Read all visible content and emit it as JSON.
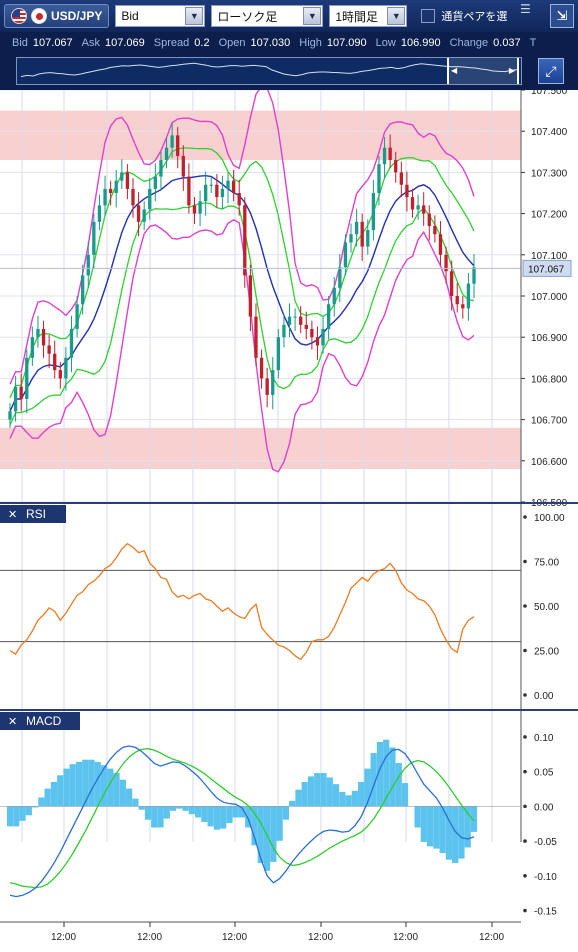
{
  "toolbar": {
    "pair": "USD/JPY",
    "price_type": "Bid",
    "chart_type": "ローソク足",
    "timeframe": "1時間足",
    "compare_label": "通貨ペアを選"
  },
  "quote": {
    "bid_label": "Bid",
    "bid": "107.067",
    "ask_label": "Ask",
    "ask": "107.069",
    "spread_label": "Spread",
    "spread": "0.2",
    "open_label": "Open",
    "open": "107.030",
    "high_label": "High",
    "high": "107.090",
    "low_label": "Low",
    "low": "106.990",
    "change_label": "Change",
    "change": "0.037",
    "trailing": "T"
  },
  "icons": {
    "menu": "menu-lines-icon",
    "shrink": "shrink-arrow-icon",
    "expand": "expand-arrows-icon",
    "close": "close-x-icon"
  },
  "colors": {
    "candle_up": "#1a9a8c",
    "candle_down": "#c0202a",
    "bollinger_outer": "#e040d0",
    "bollinger_inner": "#30d030",
    "moving_average": "#2030b0",
    "resistance_zone": "#f8c8c8",
    "rsi_line": "#ee7a22",
    "macd_line": "#2a6fd8",
    "signal_line": "#30cc30",
    "histogram": "#5bc3ee"
  },
  "chart_data": [
    {
      "type": "candlestick",
      "panel": "price",
      "current_price_label": "107.067",
      "y_ticks": [
        "107.500",
        "107.400",
        "107.300",
        "107.200",
        "107.100",
        "107.000",
        "106.900",
        "106.800",
        "106.700",
        "106.600",
        "106.500"
      ],
      "ylim": [
        106.5,
        107.5
      ],
      "x_ticks": [
        "12:00",
        "12:00",
        "12:00",
        "12:00",
        "12:00",
        "12:00"
      ],
      "zones": [
        [
          107.33,
          107.45
        ],
        [
          106.58,
          106.68
        ]
      ],
      "close": [
        106.72,
        106.78,
        106.75,
        106.85,
        106.9,
        106.92,
        106.88,
        106.86,
        106.82,
        106.8,
        106.85,
        106.92,
        106.98,
        107.05,
        107.1,
        107.18,
        107.22,
        107.26,
        107.25,
        107.28,
        107.3,
        107.26,
        107.22,
        107.18,
        107.21,
        107.26,
        107.29,
        107.33,
        107.36,
        107.39,
        107.34,
        107.29,
        107.22,
        107.2,
        107.23,
        107.27,
        107.27,
        107.24,
        107.26,
        107.28,
        107.25,
        107.22,
        107.05,
        106.95,
        106.85,
        106.8,
        106.76,
        106.82,
        106.9,
        106.93,
        106.95,
        106.95,
        106.93,
        106.92,
        106.9,
        106.88,
        106.92,
        106.98,
        107.02,
        107.07,
        107.13,
        107.15,
        107.18,
        107.12,
        107.16,
        107.25,
        107.32,
        107.36,
        107.33,
        107.3,
        107.27,
        107.24,
        107.21,
        107.22,
        107.2,
        107.17,
        107.15,
        107.1,
        107.06,
        107.0,
        106.98,
        106.97,
        107.03,
        107.07
      ]
    },
    {
      "type": "line",
      "panel": "RSI",
      "title": "RSI",
      "y_ticks": [
        "100.00",
        "75.00",
        "50.00",
        "25.00",
        "0.00"
      ],
      "ylim": [
        0,
        100
      ],
      "levels": [
        70,
        30
      ],
      "values": [
        25,
        23,
        28,
        31,
        36,
        42,
        45,
        49,
        47,
        42,
        46,
        51,
        56,
        58,
        62,
        64,
        67,
        71,
        73,
        77,
        82,
        85,
        83,
        80,
        81,
        74,
        71,
        66,
        65,
        58,
        55,
        56,
        54,
        56,
        57,
        54,
        53,
        50,
        47,
        49,
        46,
        44,
        43,
        48,
        51,
        38,
        34,
        31,
        28,
        27,
        25,
        22,
        20,
        24,
        30,
        31,
        31,
        33,
        38,
        45,
        52,
        60,
        63,
        66,
        64,
        68,
        70,
        71,
        74,
        70,
        63,
        59,
        57,
        54,
        53,
        50,
        45,
        37,
        31,
        26,
        24,
        37,
        42,
        44
      ]
    },
    {
      "type": "bar+line",
      "panel": "MACD",
      "title": "MACD",
      "y_ticks": [
        "0.10",
        "0.05",
        "0.00",
        "-0.05",
        "-0.10",
        "-0.15"
      ],
      "ylim": [
        -0.155,
        0.11
      ],
      "series": [
        {
          "name": "MACD",
          "values": [
            -0.128,
            -0.13,
            -0.128,
            -0.124,
            -0.118,
            -0.108,
            -0.096,
            -0.082,
            -0.066,
            -0.048,
            -0.03,
            -0.012,
            0.006,
            0.024,
            0.04,
            0.055,
            0.068,
            0.078,
            0.085,
            0.087,
            0.085,
            0.079,
            0.071,
            0.062,
            0.058,
            0.061,
            0.064,
            0.063,
            0.058,
            0.051,
            0.043,
            0.033,
            0.022,
            0.012,
            0.006,
            0.004,
            0.003,
            -0.002,
            -0.018,
            -0.045,
            -0.075,
            -0.1,
            -0.11,
            -0.104,
            -0.093,
            -0.08,
            -0.069,
            -0.059,
            -0.05,
            -0.042,
            -0.036,
            -0.034,
            -0.035,
            -0.037,
            -0.036,
            -0.028,
            -0.015,
            0.005,
            0.03,
            0.054,
            0.072,
            0.081,
            0.082,
            0.076,
            0.063,
            0.047,
            0.032,
            0.022,
            0.012,
            -0.002,
            -0.02,
            -0.036,
            -0.045,
            -0.047,
            -0.044
          ]
        },
        {
          "name": "Signal",
          "values": [
            -0.11,
            -0.112,
            -0.115,
            -0.116,
            -0.117,
            -0.116,
            -0.112,
            -0.104,
            -0.094,
            -0.082,
            -0.068,
            -0.052,
            -0.036,
            -0.018,
            0.0,
            0.018,
            0.034,
            0.048,
            0.061,
            0.071,
            0.078,
            0.082,
            0.083,
            0.081,
            0.077,
            0.072,
            0.068,
            0.065,
            0.062,
            0.058,
            0.053,
            0.047,
            0.04,
            0.033,
            0.026,
            0.019,
            0.013,
            0.008,
            0.001,
            -0.01,
            -0.024,
            -0.042,
            -0.06,
            -0.073,
            -0.081,
            -0.085,
            -0.084,
            -0.081,
            -0.077,
            -0.072,
            -0.066,
            -0.06,
            -0.055,
            -0.05,
            -0.046,
            -0.042,
            -0.037,
            -0.029,
            -0.018,
            -0.004,
            0.012,
            0.028,
            0.043,
            0.055,
            0.063,
            0.066,
            0.064,
            0.058,
            0.05,
            0.04,
            0.028,
            0.015,
            0.002,
            -0.01,
            -0.021
          ]
        }
      ]
    }
  ]
}
